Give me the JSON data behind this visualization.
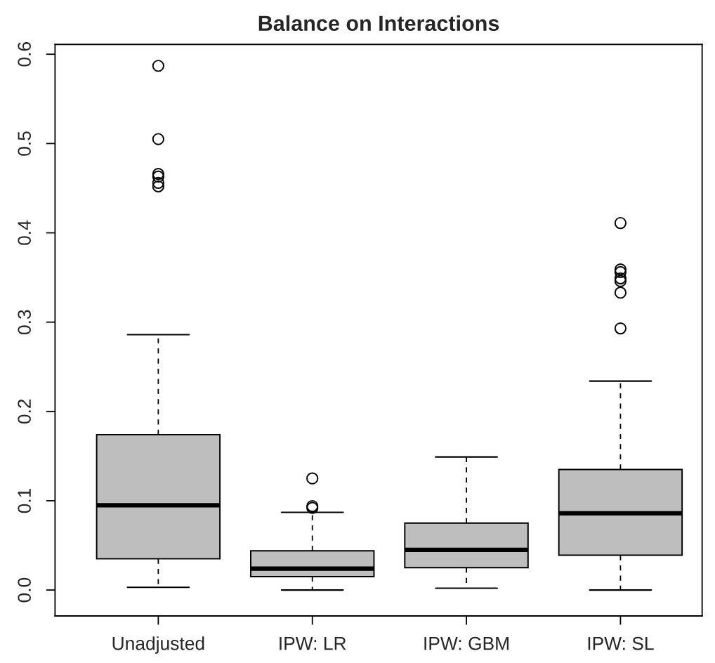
{
  "chart_data": {
    "type": "box",
    "title": "Balance on Interactions",
    "categories": [
      "Unadjusted",
      "IPW: LR",
      "IPW: GBM",
      "IPW: SL"
    ],
    "boxes": [
      {
        "low": 0.003,
        "q1": 0.035,
        "median": 0.095,
        "q3": 0.174,
        "high": 0.286,
        "outliers": [
          0.587,
          0.505,
          0.466,
          0.463,
          0.456,
          0.452
        ]
      },
      {
        "low": 0.0,
        "q1": 0.015,
        "median": 0.024,
        "q3": 0.044,
        "high": 0.087,
        "outliers": [
          0.125,
          0.094,
          0.092
        ]
      },
      {
        "low": 0.002,
        "q1": 0.025,
        "median": 0.045,
        "q3": 0.075,
        "high": 0.149
      },
      {
        "low": 0.0,
        "q1": 0.039,
        "median": 0.086,
        "q3": 0.135,
        "high": 0.234,
        "outliers": [
          0.411,
          0.359,
          0.356,
          0.349,
          0.346,
          0.333,
          0.293
        ]
      }
    ],
    "color": "#bebebe",
    "ylim": [
      -0.029,
      0.611
    ],
    "yticks": [
      {
        "value": 0,
        "label": "0.0"
      },
      0.1,
      0.2,
      0.3,
      0.4,
      0.5,
      0.6
    ],
    "grid": false,
    "line_style": "dashed"
  }
}
